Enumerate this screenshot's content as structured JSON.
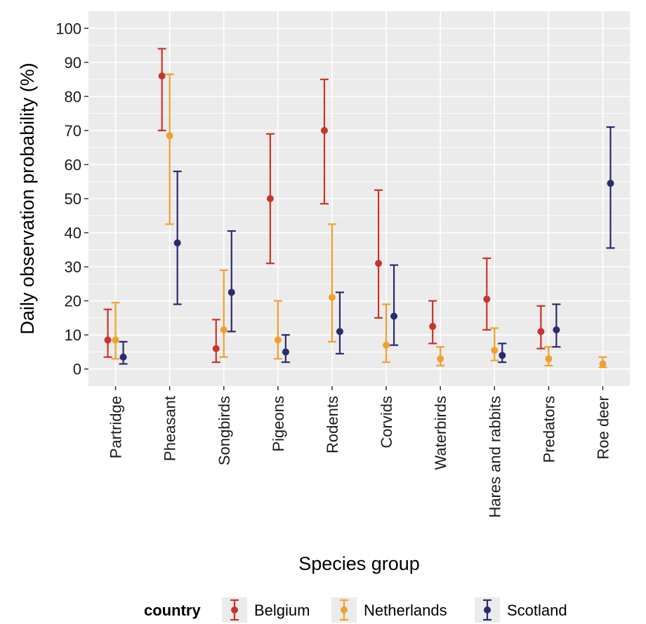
{
  "chart_data": {
    "type": "errorbar",
    "title": "",
    "xlabel": "Species group",
    "ylabel": "Daily observation probability (%)",
    "ylim": [
      -5,
      105
    ],
    "yticks": [
      0,
      10,
      20,
      30,
      40,
      50,
      60,
      70,
      80,
      90,
      100
    ],
    "categories": [
      "Partridge",
      "Pheasant",
      "Songbirds",
      "Pigeons",
      "Rodents",
      "Corvids",
      "Waterbirds",
      "Hares and rabbits",
      "Predators",
      "Roe deer"
    ],
    "legend": {
      "title": "country",
      "position": "bottom"
    },
    "series": [
      {
        "name": "Belgium",
        "color": "#c8352b",
        "points": [
          {
            "category": "Partridge",
            "value": 8.5,
            "lower": 3.5,
            "upper": 17.5
          },
          {
            "category": "Pheasant",
            "value": 86,
            "lower": 70,
            "upper": 94
          },
          {
            "category": "Songbirds",
            "value": 6,
            "lower": 2,
            "upper": 14.5
          },
          {
            "category": "Pigeons",
            "value": 50,
            "lower": 31,
            "upper": 69
          },
          {
            "category": "Rodents",
            "value": 70,
            "lower": 48.5,
            "upper": 85
          },
          {
            "category": "Corvids",
            "value": 31,
            "lower": 15,
            "upper": 52.5
          },
          {
            "category": "Waterbirds",
            "value": 12.5,
            "lower": 7.5,
            "upper": 20
          },
          {
            "category": "Hares and rabbits",
            "value": 20.5,
            "lower": 11.5,
            "upper": 32.5
          },
          {
            "category": "Predators",
            "value": 11,
            "lower": 6,
            "upper": 18.5
          }
        ]
      },
      {
        "name": "Netherlands",
        "color": "#f0a030",
        "points": [
          {
            "category": "Partridge",
            "value": 8.5,
            "lower": 3,
            "upper": 19.5
          },
          {
            "category": "Pheasant",
            "value": 68.5,
            "lower": 42.5,
            "upper": 86.5
          },
          {
            "category": "Songbirds",
            "value": 11.5,
            "lower": 3.5,
            "upper": 29
          },
          {
            "category": "Pigeons",
            "value": 8.5,
            "lower": 3,
            "upper": 20
          },
          {
            "category": "Rodents",
            "value": 21,
            "lower": 8,
            "upper": 42.5
          },
          {
            "category": "Corvids",
            "value": 7,
            "lower": 2,
            "upper": 19
          },
          {
            "category": "Waterbirds",
            "value": 3,
            "lower": 1,
            "upper": 6.5
          },
          {
            "category": "Hares and rabbits",
            "value": 5.5,
            "lower": 2.5,
            "upper": 12
          },
          {
            "category": "Predators",
            "value": 3,
            "lower": 1,
            "upper": 6.5
          },
          {
            "category": "Roe deer",
            "value": 1.5,
            "lower": 0.5,
            "upper": 3.5
          }
        ]
      },
      {
        "name": "Scotland",
        "color": "#2a2a6e",
        "points": [
          {
            "category": "Partridge",
            "value": 3.5,
            "lower": 1.5,
            "upper": 8
          },
          {
            "category": "Pheasant",
            "value": 37,
            "lower": 19,
            "upper": 58
          },
          {
            "category": "Songbirds",
            "value": 22.5,
            "lower": 11,
            "upper": 40.5
          },
          {
            "category": "Pigeons",
            "value": 5,
            "lower": 2,
            "upper": 10
          },
          {
            "category": "Rodents",
            "value": 11,
            "lower": 4.5,
            "upper": 22.5
          },
          {
            "category": "Corvids",
            "value": 15.5,
            "lower": 7,
            "upper": 30.5
          },
          {
            "category": "Hares and rabbits",
            "value": 4,
            "lower": 2,
            "upper": 7.5
          },
          {
            "category": "Predators",
            "value": 11.5,
            "lower": 6.5,
            "upper": 19
          },
          {
            "category": "Roe deer",
            "value": 54.5,
            "lower": 35.5,
            "upper": 71
          }
        ]
      }
    ]
  },
  "style": {
    "panel_background": "#ebebeb",
    "grid_color": "#ffffff",
    "axis_tick_color": "#333333"
  }
}
